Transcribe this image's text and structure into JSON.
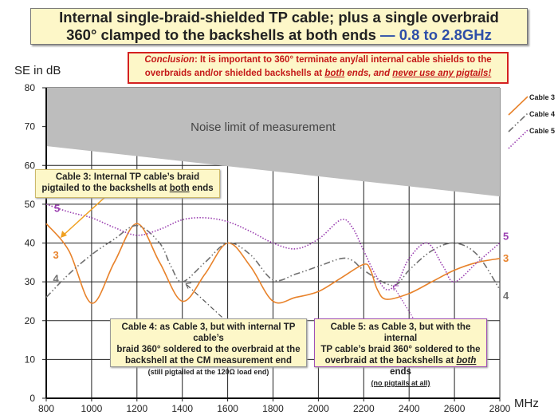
{
  "title": {
    "line1": "Internal single-braid-shielded TP cable; plus a single overbraid",
    "line2": "360° clamped to the backshells at both ends",
    "dash": " — ",
    "range": "0.8 to 2.8GHz"
  },
  "conclusion": {
    "lead": "Conclusion",
    "t1": ": It is important to 360° terminate any/all internal cable shields to the",
    "t2": "overbraids and/or shielded backshells at ",
    "both": "both",
    "t3": " ends, ",
    "t4": "and ",
    "never": "never use any pigtails!"
  },
  "annotations": {
    "cable3": {
      "l1": "Cable 3: Internal TP cable’s braid",
      "l2a": "pigtailed to the backshells at ",
      "l2b": "both",
      "l2c": " ends"
    },
    "cable4": {
      "l1": "Cable 4: as Cable 3, but with internal TP cable’s",
      "l2": "braid 360° soldered to the overbraid at the",
      "l3": "backshell at the CM measurement end",
      "l4": "(still pigtailed at the 120Ω load end)"
    },
    "cable5": {
      "l1": "Cable 5: as Cable 3, but with the internal",
      "l2": "TP cable’s braid 360° soldered to the",
      "l3a": "overbraid at the backshells at ",
      "l3b": "both",
      "l3c": " ends",
      "l4": "(no pigtails at all)"
    },
    "noise": "Noise limit of measurement"
  },
  "chart_data": {
    "type": "line",
    "title": "Internal single-braid-shielded TP cable; plus a single overbraid 360° clamped to the backshells at both ends — 0.8 to 2.8GHz",
    "xlabel": "MHz",
    "ylabel": "SE in dB",
    "xlim": [
      800,
      2800
    ],
    "ylim": [
      0,
      80
    ],
    "xticks": [
      800,
      1000,
      1200,
      1400,
      1600,
      1800,
      2000,
      2200,
      2400,
      2600,
      2800
    ],
    "yticks": [
      0,
      10,
      20,
      30,
      40,
      50,
      60,
      70,
      80
    ],
    "grid": true,
    "legend_position": "top-right",
    "noise_limit": {
      "x": [
        800,
        2800
      ],
      "lower": [
        65,
        52
      ],
      "upper": [
        80,
        80
      ]
    },
    "series": [
      {
        "name": "Cable 3",
        "tag": "3",
        "color": "#e8822a",
        "style": "solid",
        "x": [
          800,
          900,
          1000,
          1100,
          1200,
          1300,
          1400,
          1500,
          1600,
          1700,
          1800,
          1900,
          2000,
          2100,
          2200,
          2230,
          2260,
          2300,
          2400,
          2500,
          2600,
          2700,
          2800
        ],
        "y": [
          45,
          38,
          24.5,
          35,
          45,
          35,
          25,
          32,
          40,
          34,
          25,
          26,
          27.5,
          31,
          34.5,
          33,
          28,
          25.5,
          27,
          30,
          33,
          35,
          36
        ]
      },
      {
        "name": "Cable 4",
        "tag": "4",
        "color": "#707070",
        "style": "dashdot",
        "x": [
          800,
          900,
          1000,
          1100,
          1200,
          1300,
          1350,
          1400,
          1500,
          1600,
          1700,
          1800,
          1900,
          2000,
          2100,
          2150,
          2200,
          2300,
          2350,
          2400,
          2500,
          2600,
          2700,
          2800
        ],
        "y": [
          26,
          32,
          37,
          41,
          44.5,
          40,
          34,
          30,
          35,
          40,
          37,
          30.5,
          32,
          34,
          36,
          35.5,
          33,
          29.5,
          29.5,
          33,
          38,
          40,
          37,
          28
        ]
      },
      {
        "name": "Cable 5",
        "tag": "5",
        "color": "#9a3fb0",
        "style": "dotted",
        "x": [
          800,
          900,
          1000,
          1100,
          1200,
          1300,
          1400,
          1500,
          1600,
          1700,
          1800,
          1900,
          2000,
          2100,
          2150,
          2200,
          2250,
          2300,
          2350,
          2400,
          2480,
          2550,
          2600,
          2700,
          2800
        ],
        "y": [
          50,
          48,
          46.5,
          44,
          42,
          43.5,
          46,
          46.5,
          45.5,
          43,
          40,
          38.5,
          41,
          46,
          44,
          38,
          32,
          28,
          30,
          36,
          40,
          34,
          30,
          35,
          40
        ]
      }
    ]
  }
}
